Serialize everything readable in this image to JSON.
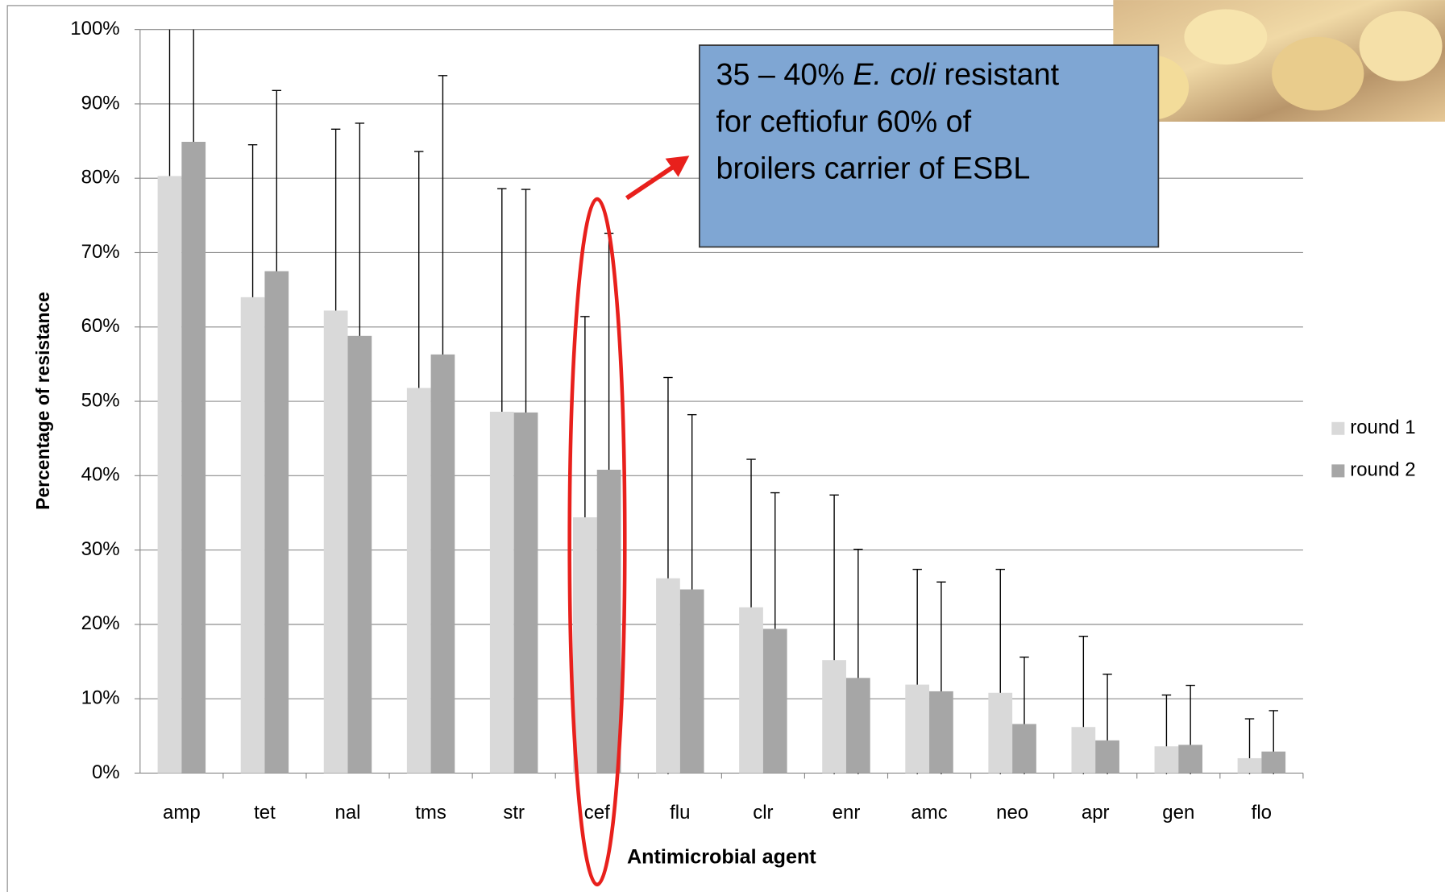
{
  "chart_data": {
    "type": "bar",
    "x_label": "Antimicrobial agent",
    "y_label": "Percentage of resistance",
    "categories": [
      "amp",
      "tet",
      "nal",
      "tms",
      "str",
      "cef",
      "flu",
      "clr",
      "enr",
      "amc",
      "neo",
      "apr",
      "gen",
      "flo"
    ],
    "series": [
      {
        "name": "round 1",
        "color": "#d9d9d9",
        "values": [
          80.3,
          64,
          62.2,
          51.8,
          48.6,
          34.4,
          26.2,
          22.3,
          15.2,
          11.9,
          10.8,
          6.2,
          3.6,
          2
        ],
        "errors": [
          23.3,
          20.5,
          24.4,
          31.8,
          30,
          27,
          27,
          19.9,
          22.2,
          15.5,
          16.6,
          12.2,
          6.9,
          5.3
        ]
      },
      {
        "name": "round 2",
        "color": "#a6a6a6",
        "values": [
          84.9,
          67.5,
          58.8,
          56.3,
          48.5,
          40.8,
          24.7,
          19.4,
          12.8,
          11,
          6.6,
          4.4,
          3.8,
          2.9
        ],
        "errors": [
          18.6,
          24.3,
          28.6,
          37.5,
          30,
          31.8,
          23.5,
          18.3,
          17.3,
          14.7,
          9,
          8.9,
          8,
          5.5
        ]
      }
    ],
    "ylim": [
      0,
      100
    ],
    "yticks": [
      {
        "value": 0,
        "label": "0%"
      },
      {
        "value": 10,
        "label": "10%"
      },
      {
        "value": 20,
        "label": "20%"
      },
      {
        "value": 30,
        "label": "30%"
      },
      {
        "value": 40,
        "label": "40%"
      },
      {
        "value": 50,
        "label": "50%"
      },
      {
        "value": 60,
        "label": "60%"
      },
      {
        "value": 70,
        "label": "70%"
      },
      {
        "value": 80,
        "label": "80%"
      },
      {
        "value": 90,
        "label": "90%"
      },
      {
        "value": 100,
        "label": "100%"
      }
    ],
    "grid": true,
    "legend": "right",
    "annotation": [
      [
        "35 – 40% ",
        "E. coli",
        " resistant"
      ],
      [
        "for ceftiofur 60% of"
      ],
      [
        "broilers carrier of ESBL"
      ]
    ]
  }
}
